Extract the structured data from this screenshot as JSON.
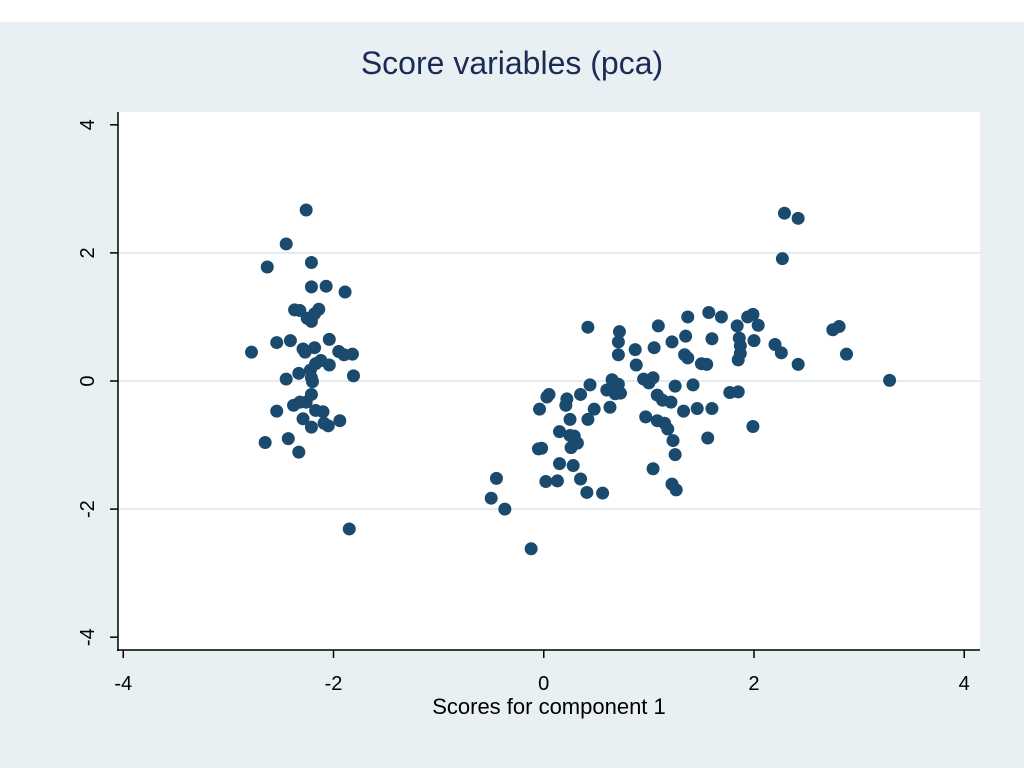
{
  "chart_data": {
    "type": "scatter",
    "title": "Score variables (pca)",
    "xlabel": "Scores for component 1",
    "ylabel": "",
    "xlim": [
      -4.05,
      4.15
    ],
    "ylim": [
      -4.2,
      4.2
    ],
    "xticks": [
      -4,
      -2,
      0,
      2,
      4
    ],
    "yticks": [
      -4,
      -2,
      0,
      2,
      4
    ],
    "grid": true,
    "legend": "none",
    "colors": {
      "frame_background": "#e9f0f3",
      "plot_background": "#ffffff",
      "marker": "#1a4a6e",
      "gridline": "#e3ebef",
      "title": "#1c2b55"
    },
    "series": [
      {
        "points": [
          [
            -2.26,
            2.67
          ],
          [
            -2.45,
            2.14
          ],
          [
            -2.63,
            1.78
          ],
          [
            -2.21,
            1.85
          ],
          [
            -2.21,
            1.47
          ],
          [
            -2.07,
            1.48
          ],
          [
            -1.89,
            1.39
          ],
          [
            -2.37,
            1.11
          ],
          [
            -2.32,
            1.1
          ],
          [
            -2.14,
            1.12
          ],
          [
            -2.18,
            1.05
          ],
          [
            -2.21,
            0.93
          ],
          [
            -2.25,
            0.98
          ],
          [
            -2.41,
            0.63
          ],
          [
            -2.54,
            0.6
          ],
          [
            -2.04,
            0.65
          ],
          [
            -2.18,
            0.52
          ],
          [
            -2.27,
            0.45
          ],
          [
            -2.29,
            0.5
          ],
          [
            -1.95,
            0.46
          ],
          [
            -1.9,
            0.41
          ],
          [
            -1.82,
            0.42
          ],
          [
            -2.78,
            0.45
          ],
          [
            -2.12,
            0.32
          ],
          [
            -2.17,
            0.27
          ],
          [
            -2.04,
            0.25
          ],
          [
            -2.22,
            0.17
          ],
          [
            -2.33,
            0.12
          ],
          [
            -2.21,
            0.05
          ],
          [
            -2.45,
            0.03
          ],
          [
            -2.2,
            -0.01
          ],
          [
            -1.81,
            0.08
          ],
          [
            -2.21,
            -0.21
          ],
          [
            -2.32,
            -0.33
          ],
          [
            -2.38,
            -0.38
          ],
          [
            -2.26,
            -0.33
          ],
          [
            -2.17,
            -0.46
          ],
          [
            -2.1,
            -0.48
          ],
          [
            -2.54,
            -0.47
          ],
          [
            -2.29,
            -0.59
          ],
          [
            -2.09,
            -0.66
          ],
          [
            -1.94,
            -0.62
          ],
          [
            -2.21,
            -0.72
          ],
          [
            -2.05,
            -0.7
          ],
          [
            -2.43,
            -0.9
          ],
          [
            -2.65,
            -0.96
          ],
          [
            -2.33,
            -1.11
          ],
          [
            -1.85,
            -2.31
          ],
          [
            0.42,
            0.84
          ],
          [
            0.72,
            0.77
          ],
          [
            0.71,
            0.61
          ],
          [
            1.09,
            0.86
          ],
          [
            1.37,
            1.0
          ],
          [
            1.57,
            1.07
          ],
          [
            1.69,
            1.0
          ],
          [
            1.94,
            1.0
          ],
          [
            1.99,
            1.04
          ],
          [
            2.04,
            0.87
          ],
          [
            1.84,
            0.86
          ],
          [
            1.86,
            0.67
          ],
          [
            1.87,
            0.55
          ],
          [
            2.0,
            0.63
          ],
          [
            2.2,
            0.57
          ],
          [
            2.26,
            0.44
          ],
          [
            1.87,
            0.43
          ],
          [
            1.85,
            0.33
          ],
          [
            2.27,
            1.91
          ],
          [
            2.29,
            2.62
          ],
          [
            2.42,
            2.54
          ],
          [
            2.75,
            0.8
          ],
          [
            2.81,
            0.85
          ],
          [
            2.88,
            0.42
          ],
          [
            2.42,
            0.26
          ],
          [
            3.29,
            0.01
          ],
          [
            0.71,
            0.41
          ],
          [
            0.87,
            0.49
          ],
          [
            1.05,
            0.52
          ],
          [
            1.22,
            0.61
          ],
          [
            1.35,
            0.7
          ],
          [
            1.34,
            0.41
          ],
          [
            1.37,
            0.36
          ],
          [
            1.5,
            0.27
          ],
          [
            1.55,
            0.26
          ],
          [
            1.6,
            0.66
          ],
          [
            0.88,
            0.25
          ],
          [
            0.95,
            0.03
          ],
          [
            1.0,
            -0.03
          ],
          [
            1.04,
            0.05
          ],
          [
            1.42,
            -0.06
          ],
          [
            1.25,
            -0.08
          ],
          [
            0.6,
            -0.14
          ],
          [
            0.65,
            0.02
          ],
          [
            0.71,
            -0.05
          ],
          [
            0.73,
            -0.19
          ],
          [
            0.68,
            -0.2
          ],
          [
            0.44,
            -0.06
          ],
          [
            0.35,
            -0.21
          ],
          [
            0.05,
            -0.21
          ],
          [
            0.03,
            -0.25
          ],
          [
            0.22,
            -0.28
          ],
          [
            0.21,
            -0.38
          ],
          [
            -0.04,
            -0.44
          ],
          [
            0.63,
            -0.41
          ],
          [
            0.48,
            -0.44
          ],
          [
            0.42,
            -0.6
          ],
          [
            0.25,
            -0.6
          ],
          [
            1.08,
            -0.22
          ],
          [
            1.13,
            -0.3
          ],
          [
            1.21,
            -0.33
          ],
          [
            1.33,
            -0.47
          ],
          [
            1.46,
            -0.43
          ],
          [
            1.6,
            -0.43
          ],
          [
            0.97,
            -0.56
          ],
          [
            1.08,
            -0.62
          ],
          [
            1.15,
            -0.66
          ],
          [
            1.18,
            -0.75
          ],
          [
            1.23,
            -0.93
          ],
          [
            0.15,
            -0.79
          ],
          [
            0.25,
            -0.85
          ],
          [
            0.29,
            -0.86
          ],
          [
            0.32,
            -0.97
          ],
          [
            0.26,
            -1.04
          ],
          [
            -0.02,
            -1.05
          ],
          [
            -0.05,
            -1.06
          ],
          [
            0.15,
            -1.29
          ],
          [
            0.28,
            -1.32
          ],
          [
            0.35,
            -1.53
          ],
          [
            0.13,
            -1.56
          ],
          [
            0.02,
            -1.57
          ],
          [
            0.41,
            -1.74
          ],
          [
            0.56,
            -1.75
          ],
          [
            1.04,
            -1.37
          ],
          [
            1.25,
            -1.15
          ],
          [
            1.56,
            -0.89
          ],
          [
            1.99,
            -0.71
          ],
          [
            1.22,
            -1.61
          ],
          [
            1.26,
            -1.7
          ],
          [
            1.77,
            -0.18
          ],
          [
            1.85,
            -0.17
          ],
          [
            -0.45,
            -1.52
          ],
          [
            -0.5,
            -1.83
          ],
          [
            -0.37,
            -2.0
          ],
          [
            -0.12,
            -2.62
          ]
        ]
      }
    ]
  }
}
